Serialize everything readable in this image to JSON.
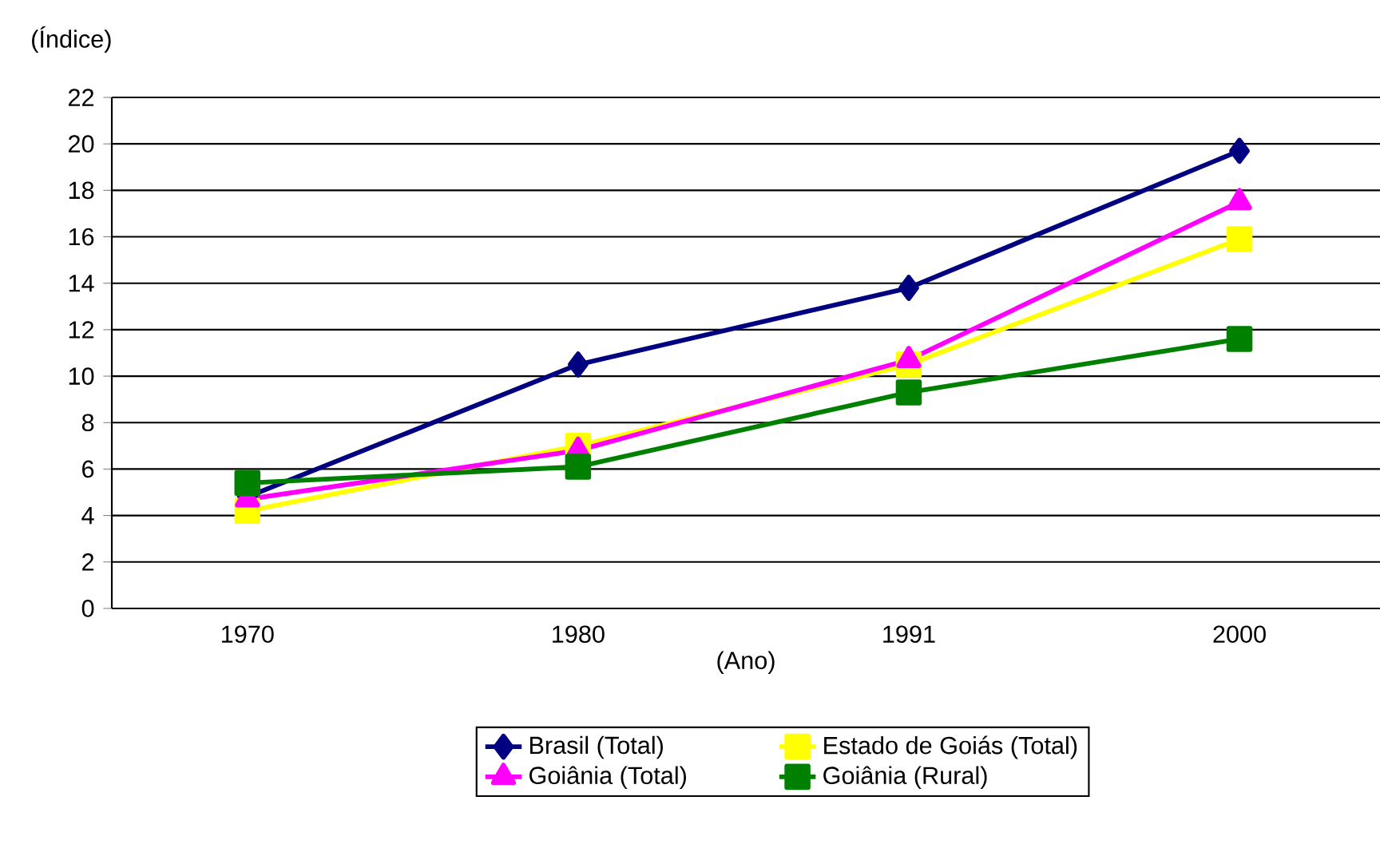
{
  "chart_data": {
    "type": "line",
    "xlabel": "(Ano)",
    "ylabel": "(Índice)",
    "categories": [
      "1970",
      "1980",
      "1991",
      "2000"
    ],
    "series": [
      {
        "name": "Brasil (Total)",
        "color": "#000080",
        "marker": "diamond",
        "values": [
          4.8,
          10.5,
          13.8,
          19.7
        ]
      },
      {
        "name": "Estado de Goiás (Total)",
        "color": "#ffff00",
        "marker": "square",
        "values": [
          4.2,
          7.0,
          10.5,
          15.9
        ]
      },
      {
        "name": "Goiânia (Total)",
        "color": "#ff00ff",
        "marker": "triangle",
        "values": [
          4.7,
          6.8,
          10.7,
          17.5
        ]
      },
      {
        "name": "Goiânia (Rural)",
        "color": "#008000",
        "marker": "square",
        "values": [
          5.4,
          6.1,
          9.3,
          11.6
        ]
      }
    ],
    "ylim": [
      0,
      22
    ],
    "yticks": [
      0,
      2,
      4,
      6,
      8,
      10,
      12,
      14,
      16,
      18,
      20,
      22
    ],
    "grid": "y",
    "legend": "bottom",
    "line_style": "solid"
  }
}
